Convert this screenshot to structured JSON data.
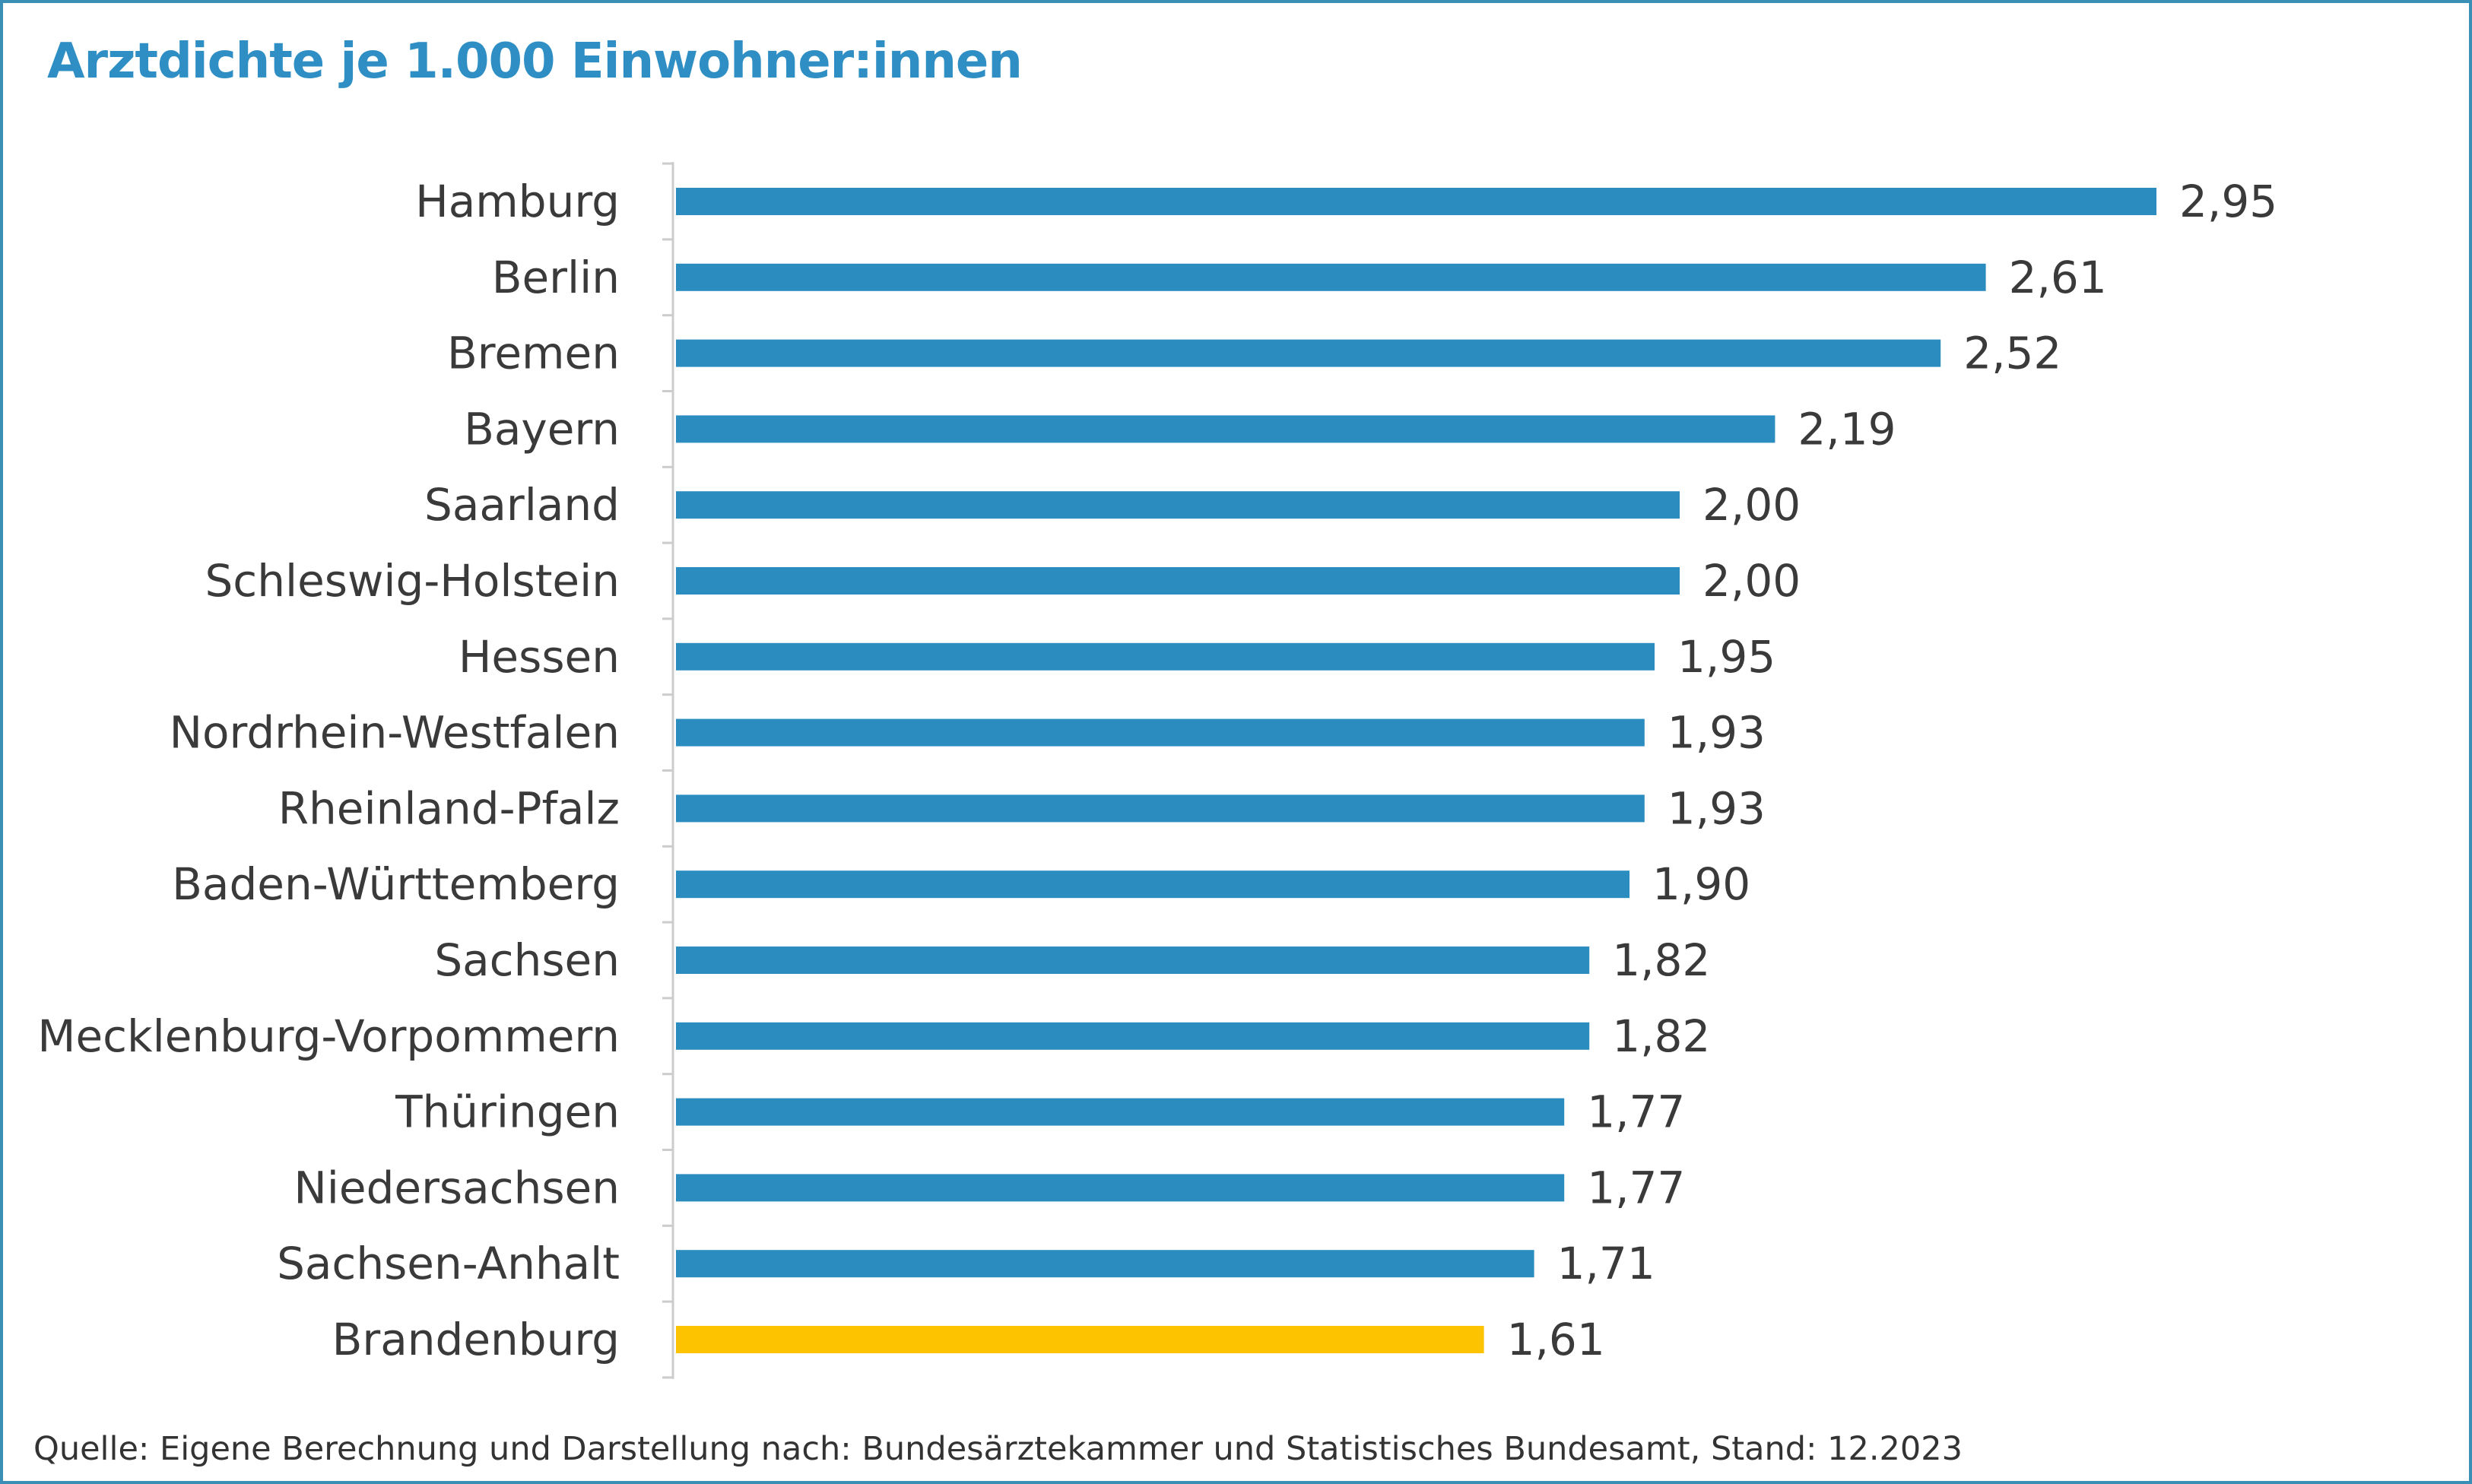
{
  "title": "Arztdichte je 1.000 Einwohner:innen",
  "source": "Quelle: Eigene Berechnung und Darstellung nach: Bundesärztekammer und Statistisches Bundesamt, Stand: 12.2023",
  "colors": {
    "bar": "#2b8cc0",
    "highlight": "#fdc300",
    "title": "#2f8fc4",
    "border": "#3a8fb7",
    "axis": "#cccccc"
  },
  "chart_data": {
    "type": "bar",
    "orientation": "horizontal",
    "categories": [
      "Hamburg",
      "Berlin",
      "Bremen",
      "Bayern",
      "Saarland",
      "Schleswig-Holstein",
      "Hessen",
      "Nordrhein-Westfalen",
      "Rheinland-Pfalz",
      "Baden-Württemberg",
      "Sachsen",
      "Mecklenburg-Vorpommern",
      "Thüringen",
      "Niedersachsen",
      "Sachsen-Anhalt",
      "Brandenburg"
    ],
    "values": [
      2.95,
      2.61,
      2.52,
      2.19,
      2.0,
      2.0,
      1.95,
      1.93,
      1.93,
      1.9,
      1.82,
      1.82,
      1.77,
      1.77,
      1.71,
      1.61
    ],
    "value_labels": [
      "2,95",
      "2,61",
      "2,52",
      "2,19",
      "2,00",
      "2,00",
      "1,95",
      "1,93",
      "1,93",
      "1,90",
      "1,82",
      "1,82",
      "1,77",
      "1,77",
      "1,71",
      "1,61"
    ],
    "highlight": "Brandenburg",
    "xlim": [
      0,
      3.0
    ],
    "grid": false,
    "legend": "none",
    "xlabel": "",
    "ylabel": ""
  }
}
